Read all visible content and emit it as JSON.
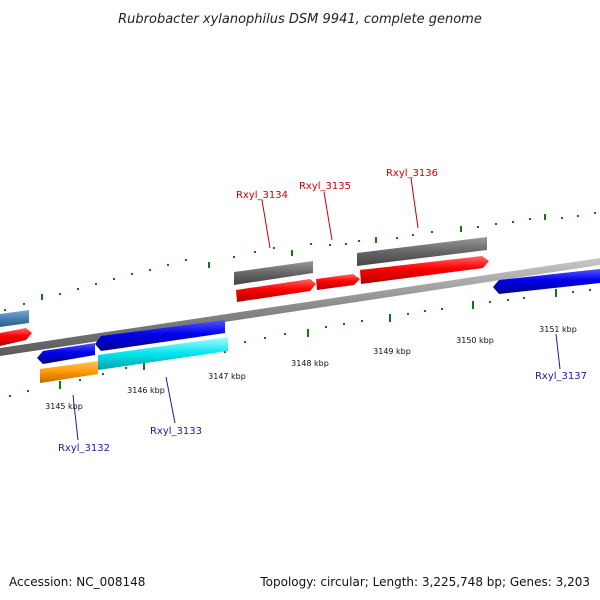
{
  "title": "Rubrobacter xylanophilus DSM 9941, complete genome",
  "footer": {
    "accession": "Accession: NC_008148",
    "topology": "Topology: circular; Length: 3,225,748 bp; Genes: 3,203"
  },
  "ruler_labels": [
    "3145 kbp",
    "3146 kbp",
    "3147 kbp",
    "3148 kbp",
    "3149 kbp",
    "3150 kbp",
    "3151 kbp"
  ],
  "gene_labels": {
    "rxyl_3132": "Rxyl_3132",
    "rxyl_3133": "Rxyl_3133",
    "rxyl_3134": "Rxyl_3134",
    "rxyl_3135": "Rxyl_3135",
    "rxyl_3136": "Rxyl_3136",
    "rxyl_3137": "Rxyl_3137"
  },
  "colors": {
    "forward_label": "#cc0000",
    "reverse_label": "#1a1aaa",
    "cds_forward": "#ff0000",
    "cds_reverse": "#0000ee",
    "rna_gray": "#666666",
    "cyan": "#00e5ee",
    "orange": "#ff9900",
    "steelblue": "#4682b4",
    "tick": "#117711",
    "backbone": "#8a8a8a"
  }
}
